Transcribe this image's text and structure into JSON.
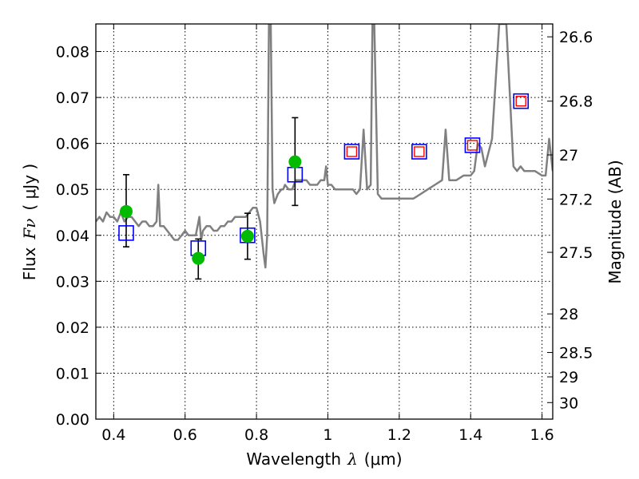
{
  "chart_data": {
    "type": "scatter",
    "title": "",
    "xlabel_prefix": "Wavelength",
    "xlabel_symbol": "λ",
    "xlabel_unit": "(μm)",
    "ylabel_prefix": "Flux",
    "ylabel_symbol": "Fν",
    "ylabel_unit": "( μJy )",
    "y2label": "Magnitude (AB)",
    "xlim": [
      0.35,
      1.63
    ],
    "ylim": [
      0.0,
      0.086
    ],
    "grid": true,
    "x_ticks": [
      0.4,
      0.6,
      0.8,
      1.0,
      1.2,
      1.4,
      1.6
    ],
    "x_tick_labels": [
      "0.4",
      "0.6",
      "0.8",
      "1",
      "1.2",
      "1.4",
      "1.6"
    ],
    "y_ticks": [
      0.0,
      0.01,
      0.02,
      0.03,
      0.04,
      0.05,
      0.06,
      0.07,
      0.08
    ],
    "y_tick_labels": [
      "0.00",
      "0.01",
      "0.02",
      "0.03",
      "0.04",
      "0.05",
      "0.06",
      "0.07",
      "0.08"
    ],
    "y2_ticks": [
      {
        "label": "26.6",
        "flux": 0.0832
      },
      {
        "label": "26.8",
        "flux": 0.0692
      },
      {
        "label": "27",
        "flux": 0.0575
      },
      {
        "label": "27.2",
        "flux": 0.0479
      },
      {
        "label": "27.5",
        "flux": 0.0363
      },
      {
        "label": "28",
        "flux": 0.0229
      },
      {
        "label": "28.5",
        "flux": 0.0145
      },
      {
        "label": "29",
        "flux": 0.0092
      },
      {
        "label": "30",
        "flux": 0.0036
      }
    ],
    "series": [
      {
        "kind": "line",
        "color": "#808080",
        "x": [
          0.35,
          0.36,
          0.37,
          0.38,
          0.39,
          0.4,
          0.41,
          0.42,
          0.43,
          0.44,
          0.45,
          0.46,
          0.47,
          0.48,
          0.49,
          0.5,
          0.51,
          0.52,
          0.525,
          0.53,
          0.54,
          0.55,
          0.56,
          0.57,
          0.58,
          0.59,
          0.6,
          0.61,
          0.62,
          0.63,
          0.64,
          0.645,
          0.65,
          0.66,
          0.67,
          0.68,
          0.69,
          0.7,
          0.71,
          0.72,
          0.73,
          0.74,
          0.75,
          0.76,
          0.77,
          0.78,
          0.79,
          0.8,
          0.81,
          0.82,
          0.825,
          0.83,
          0.835,
          0.84,
          0.845,
          0.85,
          0.86,
          0.87,
          0.875,
          0.88,
          0.89,
          0.9,
          0.91,
          0.92,
          0.93,
          0.94,
          0.95,
          0.96,
          0.97,
          0.98,
          0.99,
          0.995,
          1.0,
          1.01,
          1.02,
          1.03,
          1.04,
          1.05,
          1.06,
          1.07,
          1.08,
          1.09,
          1.1,
          1.11,
          1.12,
          1.125,
          1.13,
          1.14,
          1.15,
          1.16,
          1.18,
          1.2,
          1.22,
          1.24,
          1.26,
          1.28,
          1.3,
          1.32,
          1.33,
          1.34,
          1.36,
          1.38,
          1.4,
          1.41,
          1.42,
          1.43,
          1.44,
          1.46,
          1.48,
          1.5,
          1.52,
          1.53,
          1.54,
          1.55,
          1.56,
          1.58,
          1.6,
          1.61,
          1.62,
          1.63
        ],
        "y": [
          0.043,
          0.044,
          0.043,
          0.045,
          0.044,
          0.044,
          0.043,
          0.045,
          0.043,
          0.044,
          0.044,
          0.043,
          0.042,
          0.043,
          0.043,
          0.042,
          0.042,
          0.043,
          0.051,
          0.042,
          0.042,
          0.041,
          0.04,
          0.039,
          0.039,
          0.04,
          0.041,
          0.04,
          0.04,
          0.04,
          0.044,
          0.039,
          0.041,
          0.042,
          0.042,
          0.041,
          0.041,
          0.042,
          0.042,
          0.043,
          0.043,
          0.044,
          0.044,
          0.044,
          0.044,
          0.045,
          0.046,
          0.046,
          0.043,
          0.036,
          0.033,
          0.04,
          0.086,
          0.086,
          0.05,
          0.047,
          0.049,
          0.05,
          0.05,
          0.051,
          0.05,
          0.05,
          0.052,
          0.052,
          0.052,
          0.052,
          0.051,
          0.051,
          0.051,
          0.052,
          0.052,
          0.055,
          0.051,
          0.051,
          0.05,
          0.05,
          0.05,
          0.05,
          0.05,
          0.05,
          0.049,
          0.05,
          0.063,
          0.05,
          0.051,
          0.086,
          0.086,
          0.049,
          0.048,
          0.048,
          0.048,
          0.048,
          0.048,
          0.048,
          0.049,
          0.05,
          0.051,
          0.052,
          0.063,
          0.052,
          0.052,
          0.053,
          0.053,
          0.054,
          0.06,
          0.059,
          0.055,
          0.061,
          0.086,
          0.086,
          0.055,
          0.054,
          0.055,
          0.054,
          0.054,
          0.054,
          0.053,
          0.053,
          0.061,
          0.054
        ]
      },
      {
        "kind": "markers-circle",
        "color": "#00bb00",
        "x": [
          0.435,
          0.637,
          0.775,
          0.908
        ],
        "y": [
          0.0452,
          0.035,
          0.0398,
          0.056
        ],
        "yerr_low": [
          0.0375,
          0.0305,
          0.0348,
          0.0465
        ],
        "yerr_high": [
          0.0532,
          0.0392,
          0.0448,
          0.0656
        ]
      },
      {
        "kind": "markers-square-blue",
        "color": "#0000ff",
        "x": [
          0.435,
          0.637,
          0.775,
          0.908,
          1.067,
          1.256,
          1.405,
          1.541
        ],
        "y": [
          0.0405,
          0.0372,
          0.04,
          0.0532,
          0.0582,
          0.0582,
          0.0596,
          0.0692
        ]
      },
      {
        "kind": "markers-square-red",
        "color": "#ff0000",
        "x": [
          1.067,
          1.256,
          1.405,
          1.541
        ],
        "y": [
          0.0582,
          0.0582,
          0.0596,
          0.0692
        ]
      }
    ]
  }
}
